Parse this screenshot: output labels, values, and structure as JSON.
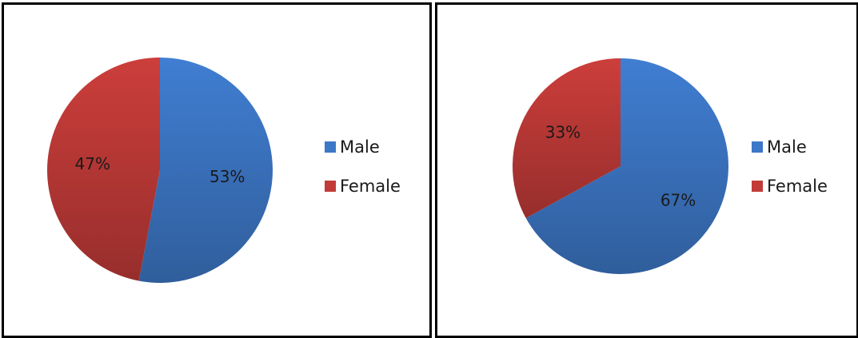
{
  "chart_data": [
    {
      "type": "pie",
      "categories": [
        "Male",
        "Female"
      ],
      "values": [
        53,
        47
      ],
      "labels": [
        "53%",
        "47%"
      ],
      "colors": [
        "#3D78C8",
        "#C23B38"
      ],
      "legend": [
        "Male",
        "Female"
      ],
      "legend_position": "right"
    },
    {
      "type": "pie",
      "categories": [
        "Male",
        "Female"
      ],
      "values": [
        67,
        33
      ],
      "labels": [
        "67%",
        "33%"
      ],
      "colors": [
        "#3D78C8",
        "#C23B38"
      ],
      "legend": [
        "Male",
        "Female"
      ],
      "legend_position": "right"
    }
  ]
}
